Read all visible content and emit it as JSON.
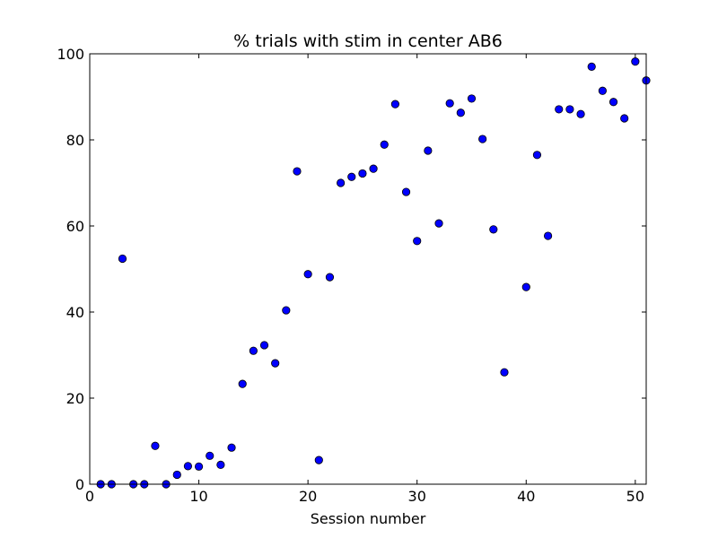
{
  "chart_data": {
    "type": "scatter",
    "title": "% trials with stim in center AB6",
    "xlabel": "Session number",
    "ylabel": "",
    "xlim": [
      0,
      51
    ],
    "ylim": [
      0,
      100
    ],
    "xticks": [
      0,
      10,
      20,
      30,
      40,
      50
    ],
    "yticks": [
      0,
      20,
      40,
      60,
      80,
      100
    ],
    "grid": false,
    "marker_color": "#0000ff",
    "series": [
      {
        "x": [
          1,
          2,
          3,
          4,
          5,
          6,
          7,
          8,
          9,
          10,
          11,
          12,
          13,
          14,
          15,
          16,
          17,
          18,
          19,
          20,
          21,
          22,
          23,
          24,
          25,
          26,
          27,
          28,
          29,
          30,
          31,
          32,
          33,
          34,
          35,
          36,
          37,
          38,
          40,
          41,
          42,
          43,
          44,
          45,
          46,
          47,
          48,
          49,
          50,
          51
        ],
        "y": [
          0,
          0,
          52.4,
          0,
          0,
          8.9,
          0,
          2.2,
          4.2,
          4.1,
          6.6,
          4.5,
          8.5,
          23.3,
          31.0,
          32.3,
          28.1,
          40.4,
          72.7,
          48.8,
          5.6,
          48.1,
          70.0,
          71.4,
          72.2,
          73.3,
          78.9,
          88.3,
          67.9,
          56.5,
          77.5,
          60.6,
          88.5,
          86.3,
          89.6,
          80.2,
          59.2,
          26.0,
          45.8,
          76.5,
          57.7,
          87.1,
          87.1,
          86.0,
          97.0,
          91.4,
          88.8,
          85.0,
          98.2,
          93.8
        ]
      }
    ]
  }
}
